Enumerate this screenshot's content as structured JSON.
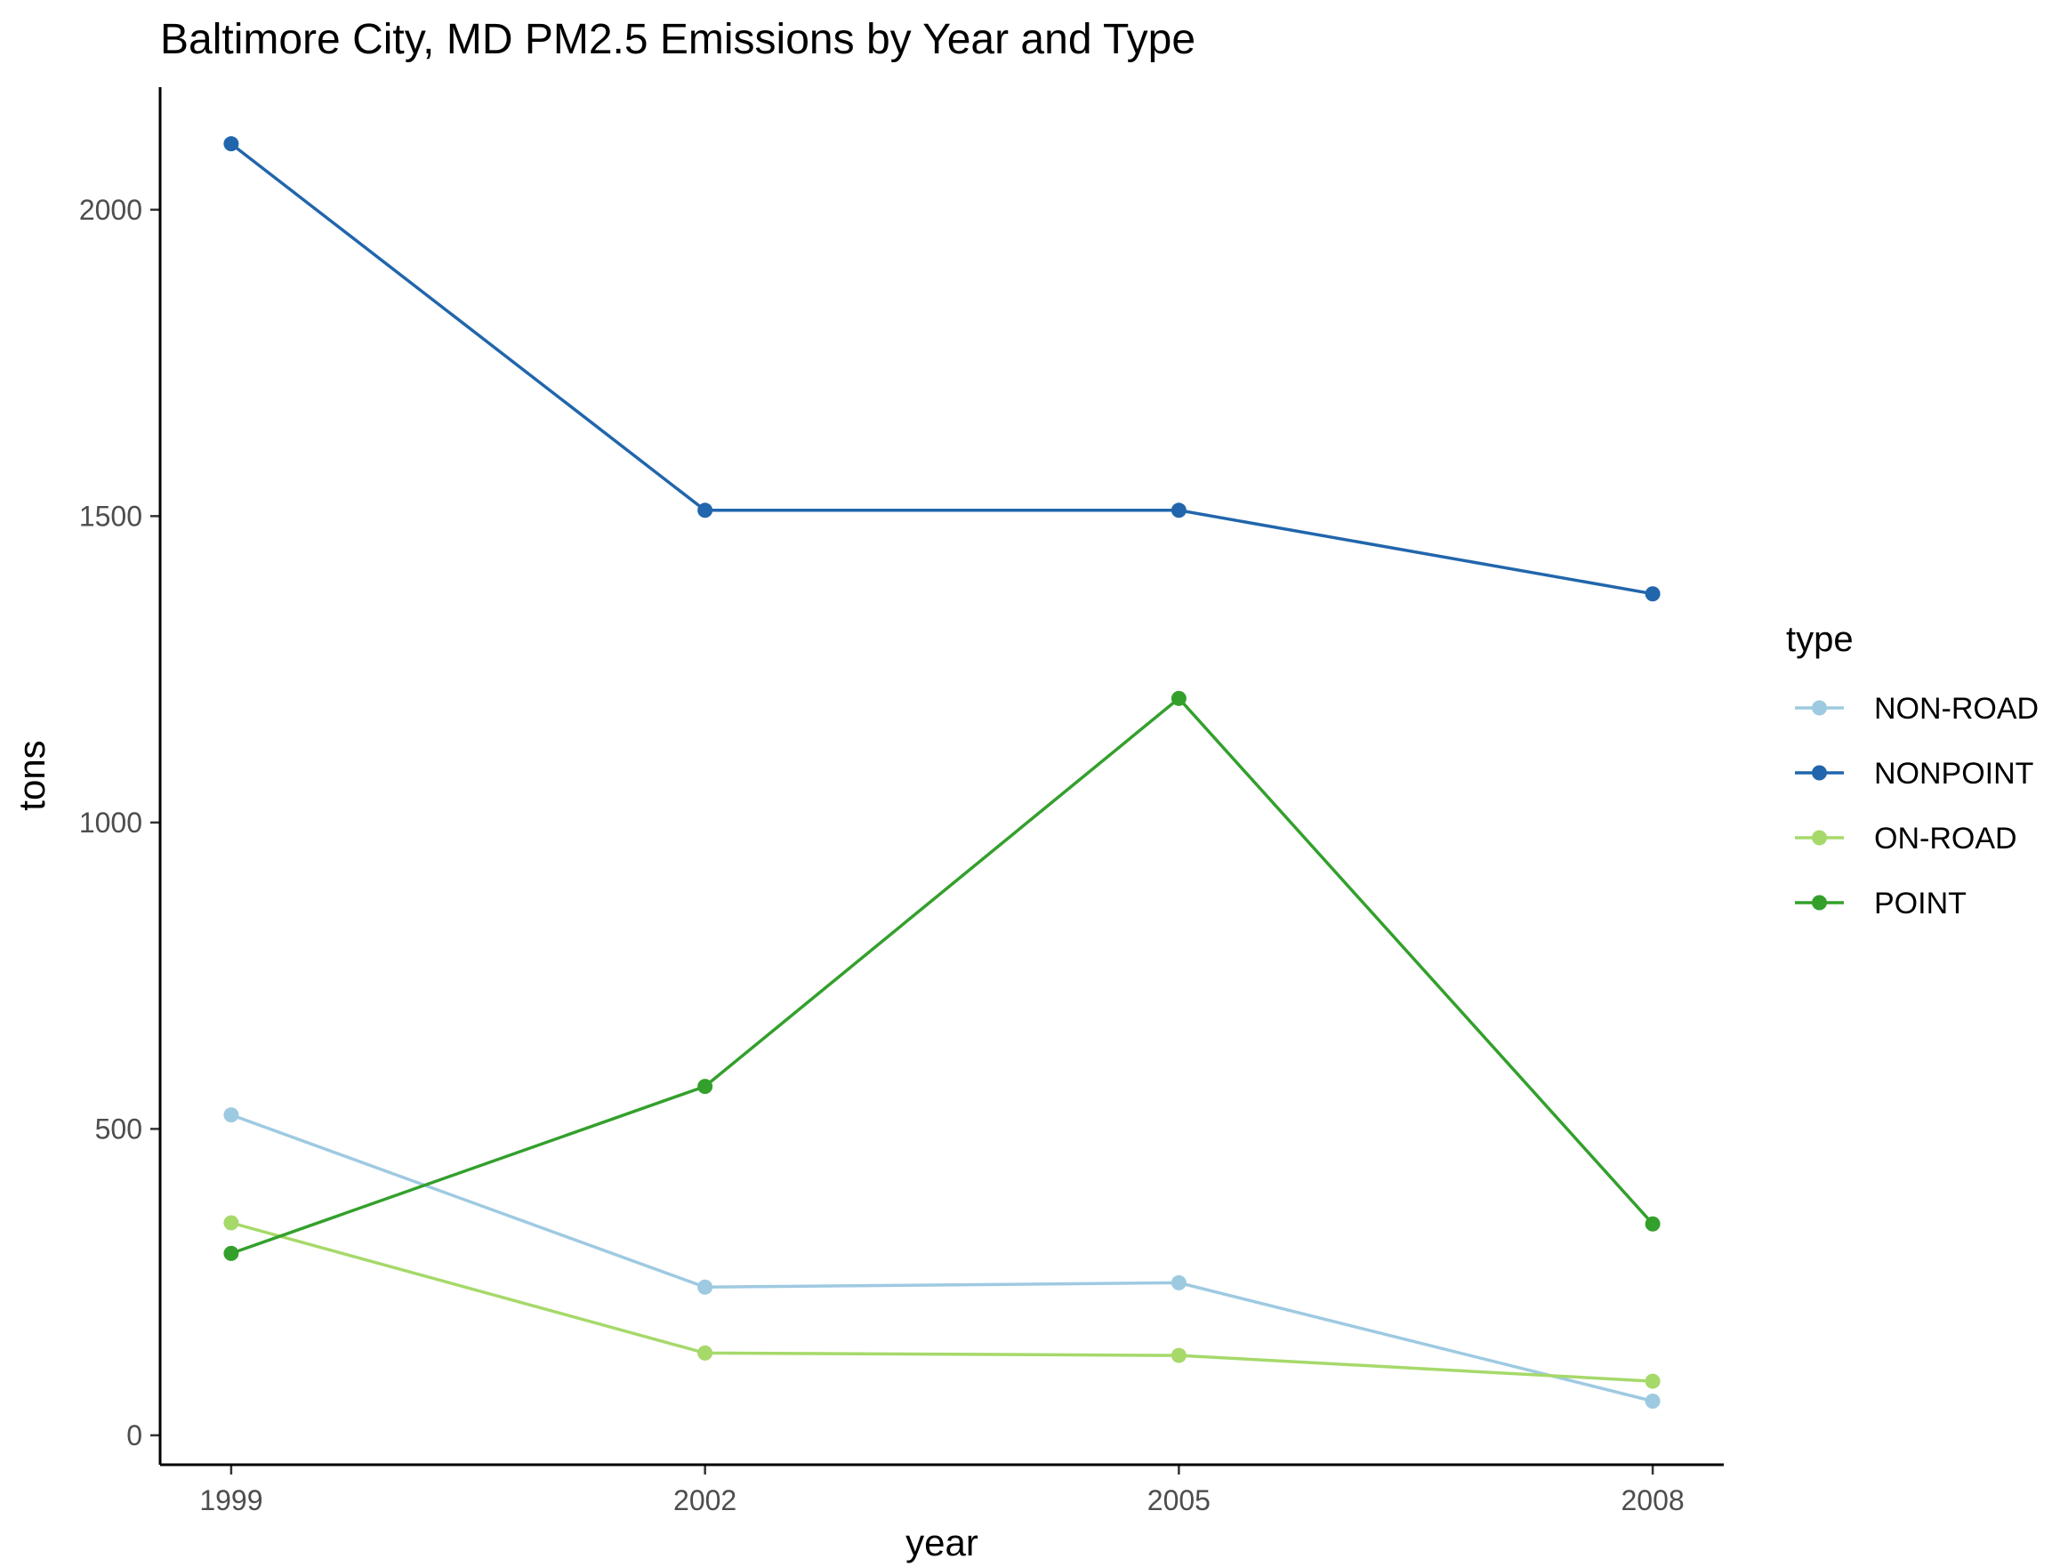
{
  "chart_data": {
    "type": "line",
    "title": "Baltimore City, MD PM2.5 Emissions by Year and Type",
    "xlabel": "year",
    "ylabel": "tons",
    "x": [
      1999,
      2002,
      2005,
      2008
    ],
    "x_tick_labels": [
      "1999",
      "2002",
      "2005",
      "2008"
    ],
    "xlim": [
      1998.55,
      2008.45
    ],
    "ylim": [
      -48,
      2200
    ],
    "y_ticks": [
      0,
      500,
      1000,
      1500,
      2000
    ],
    "y_tick_labels": [
      "0",
      "500",
      "1000",
      "1500",
      "2000"
    ],
    "grid": false,
    "legend": {
      "title": "type",
      "placement": "right"
    },
    "series": [
      {
        "name": "NON-ROAD",
        "color": "#9ecae1",
        "values": [
          522.9,
          241.8,
          248.9,
          55.8
        ]
      },
      {
        "name": "NONPOINT",
        "color": "#2166ac",
        "values": [
          2107.6,
          1509.5,
          1509.5,
          1373.2
        ]
      },
      {
        "name": "ON-ROAD",
        "color": "#a6d96a",
        "values": [
          346.8,
          134.3,
          130.4,
          88.3
        ]
      },
      {
        "name": "POINT",
        "color": "#33a02c",
        "values": [
          296.8,
          569.3,
          1202.5,
          344.98
        ]
      }
    ]
  }
}
